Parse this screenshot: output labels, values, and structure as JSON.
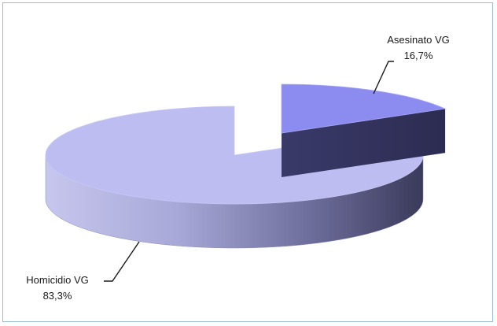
{
  "chart_data": {
    "type": "pie",
    "title": "",
    "series": [
      {
        "name": "",
        "values": [
          16.7,
          83.3
        ]
      }
    ],
    "categories": [
      "Asesinato VG",
      "Homicidio VG"
    ],
    "slices": [
      {
        "label": "Asesinato VG",
        "value_label": "16,7%",
        "value": 16.7,
        "color": "#8c8cf0",
        "exploded": true
      },
      {
        "label": "Homicidio VG",
        "value_label": "83,3%",
        "value": 83.3,
        "color": "#bdbdf2",
        "exploded": false
      }
    ],
    "style": "3d-exploded",
    "legend": "none"
  }
}
